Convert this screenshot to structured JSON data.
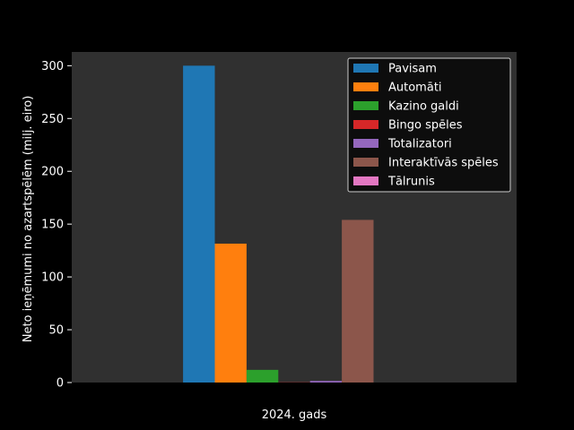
{
  "chart_data": {
    "type": "bar",
    "title": "",
    "xlabel": "2024. gads",
    "ylabel": "Neto ieņēmumi no azartspēlēm (milj. eiro)",
    "categories": [
      "2024. gads"
    ],
    "ylim": [
      0,
      313
    ],
    "yticks": [
      0,
      50,
      100,
      150,
      200,
      250,
      300
    ],
    "grid": false,
    "legend_position": "top-right",
    "colors": {
      "page_background": "#000000",
      "plot_background": "#303030",
      "text": "#ffffff"
    },
    "series": [
      {
        "name": "Pavisam",
        "values": [
          300.0
        ],
        "color": "#1f77b4"
      },
      {
        "name": "Automāti",
        "values": [
          131.5
        ],
        "color": "#ff7f0e"
      },
      {
        "name": "Kazino galdi",
        "values": [
          12.0
        ],
        "color": "#2ca02c"
      },
      {
        "name": "Bingo spēles",
        "values": [
          0.2
        ],
        "color": "#d62728"
      },
      {
        "name": "Totalizatori",
        "values": [
          1.5
        ],
        "color": "#9467bd"
      },
      {
        "name": "Interaktīvās spēles",
        "values": [
          154.0
        ],
        "color": "#8c564b"
      },
      {
        "name": "Tālrunis",
        "values": [
          0.0
        ],
        "color": "#e377c2"
      }
    ]
  }
}
